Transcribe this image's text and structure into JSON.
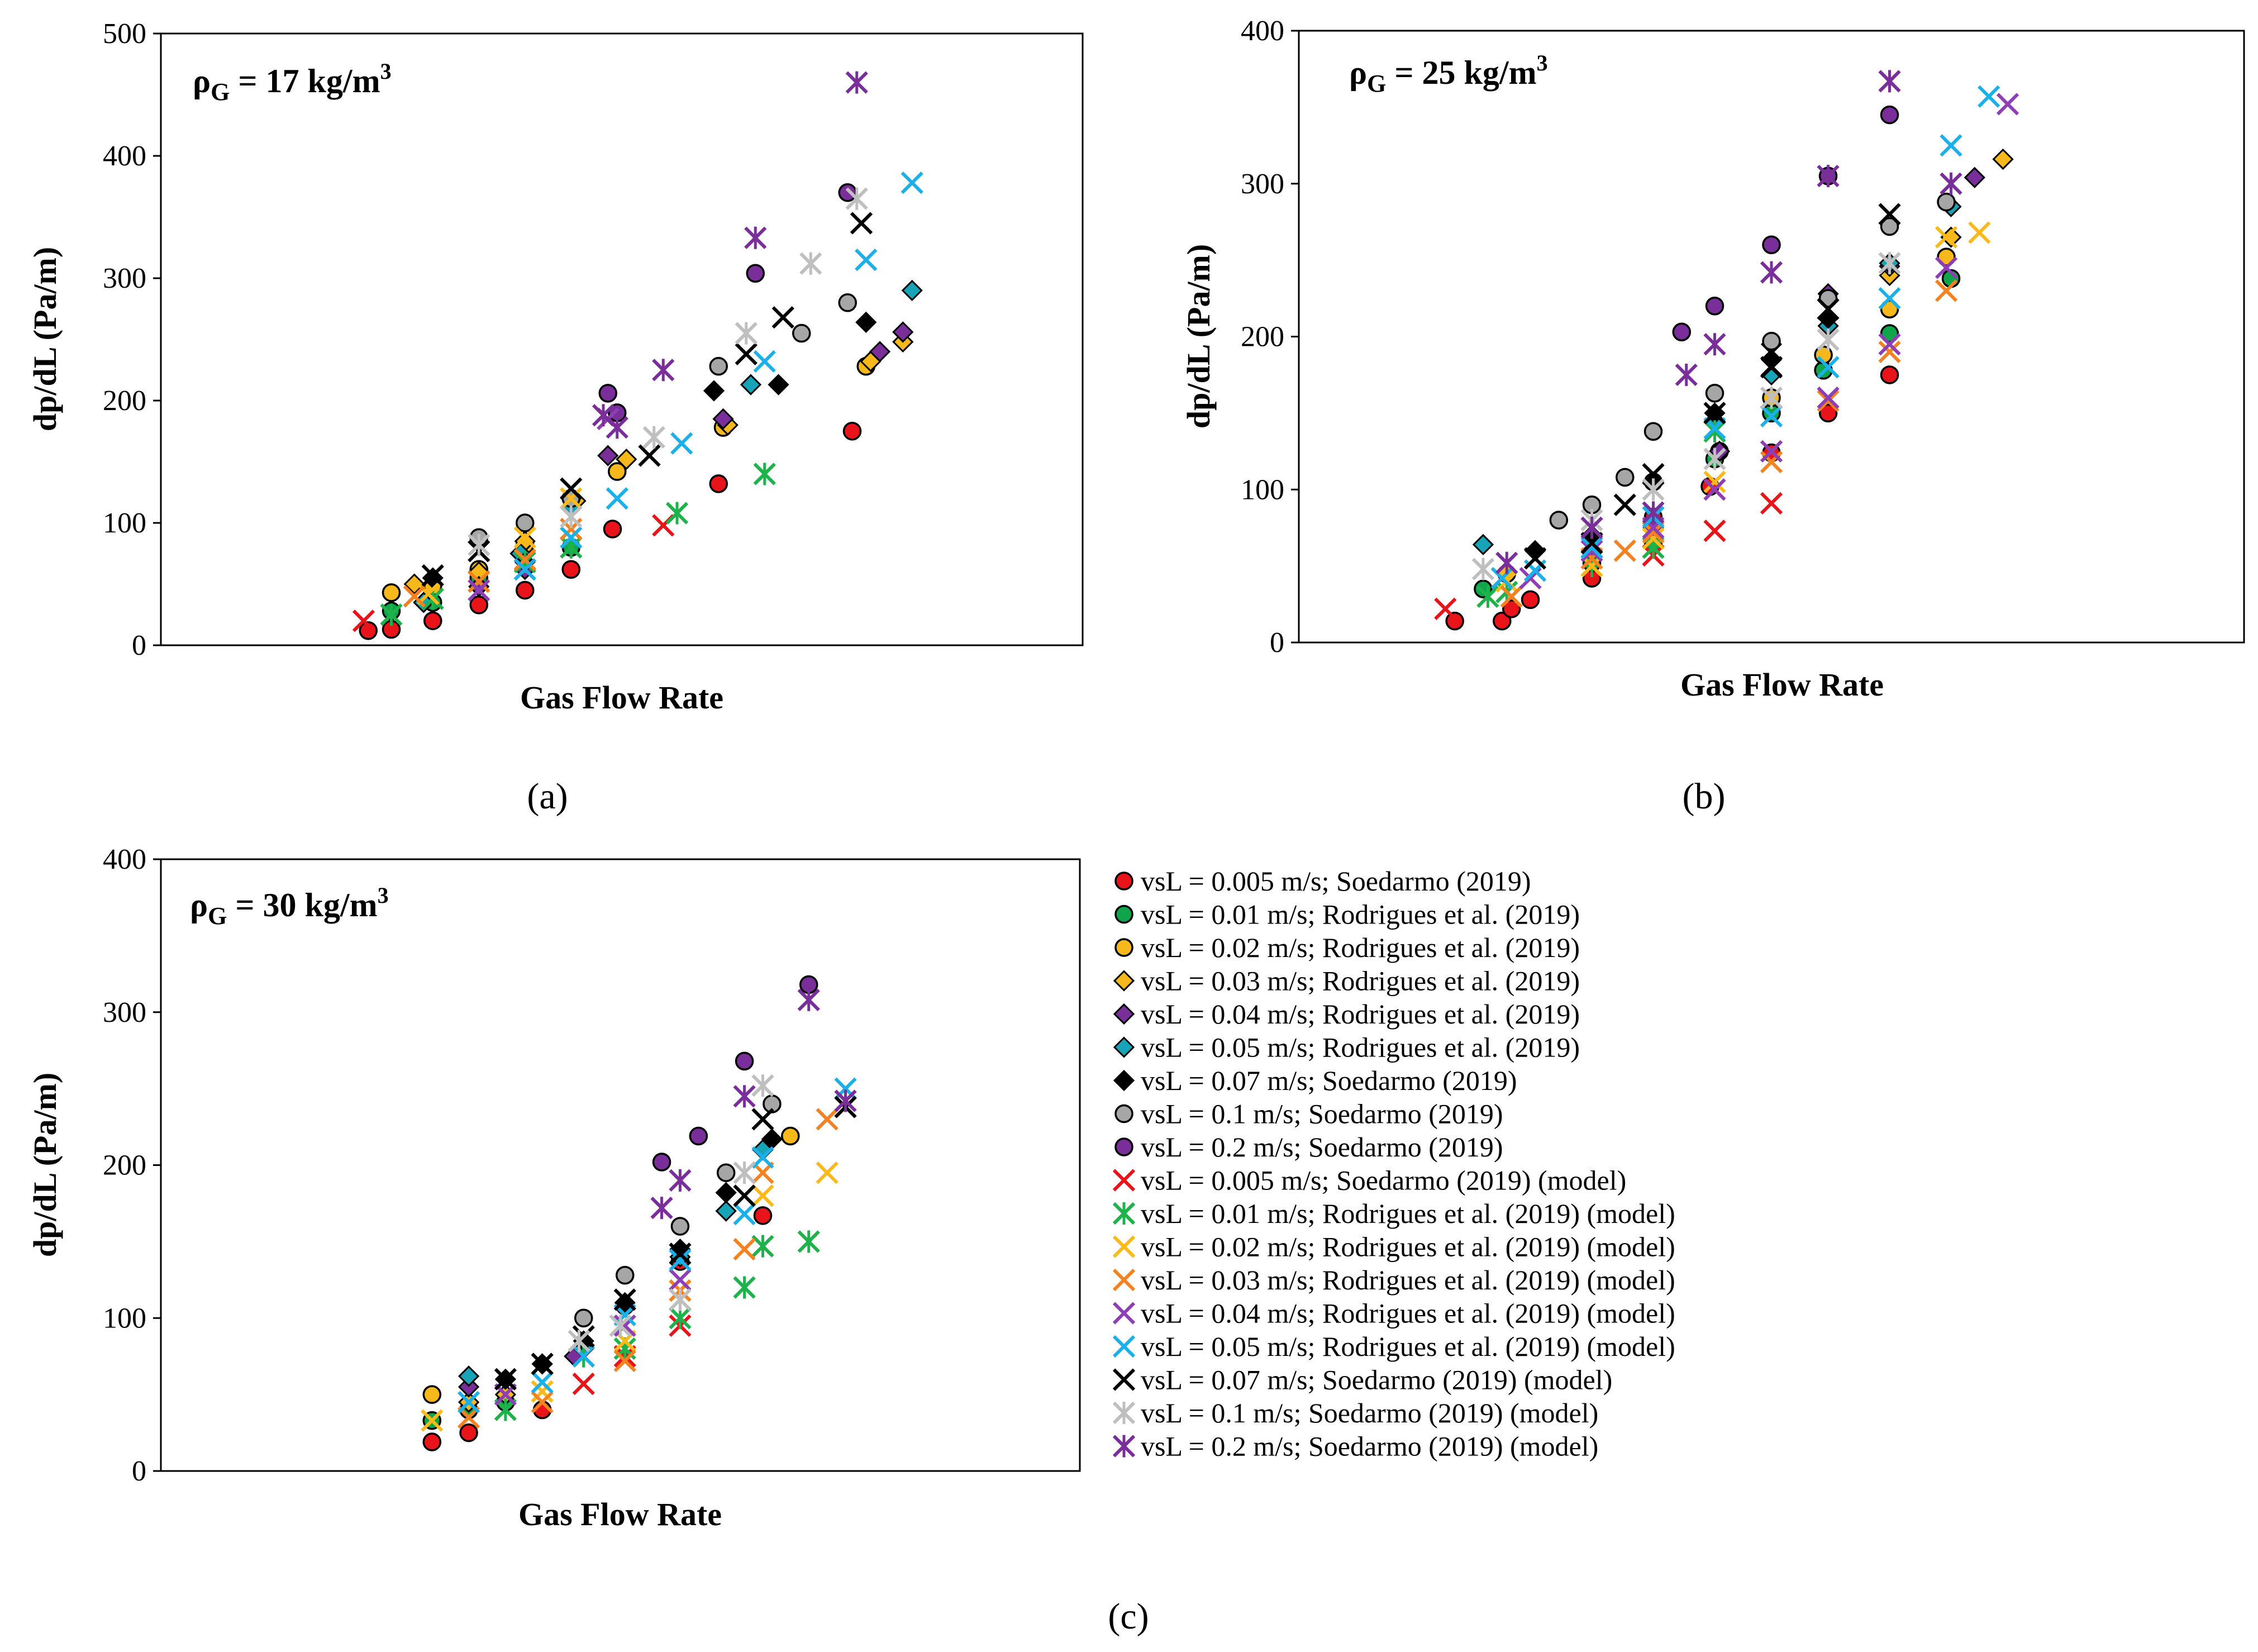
{
  "series_styles": [
    {
      "name": "vsL = 0.005 m/s; Soedarmo (2019)",
      "marker": "circle",
      "color": "#e8141a"
    },
    {
      "name": "vsL = 0.01 m/s; Rodrigues et al. (2019)",
      "marker": "circle",
      "color": "#0fa54a"
    },
    {
      "name": "vsL = 0.02 m/s; Rodrigues et al. (2019)",
      "marker": "circle",
      "color": "#f6b81a"
    },
    {
      "name": "vsL = 0.03 m/s; Rodrigues et al. (2019)",
      "marker": "diamond",
      "color": "#f6b81a"
    },
    {
      "name": "vsL = 0.04 m/s; Rodrigues et al. (2019)",
      "marker": "diamond",
      "color": "#7a2e9a"
    },
    {
      "name": "vsL = 0.05 m/s; Rodrigues et al. (2019)",
      "marker": "diamond",
      "color": "#17a3b8"
    },
    {
      "name": "vsL = 0.07 m/s; Soedarmo (2019)",
      "marker": "diamond",
      "color": "#000000"
    },
    {
      "name": "vsL = 0.1 m/s; Soedarmo (2019)",
      "marker": "circle",
      "color": "#a6a6a6"
    },
    {
      "name": "vsL = 0.2 m/s; Soedarmo (2019)",
      "marker": "circle",
      "color": "#7a2e9a"
    },
    {
      "name": "vsL = 0.005 m/s; Soedarmo (2019) (model)",
      "marker": "x",
      "color": "#e8141a"
    },
    {
      "name": "vsL = 0.01 m/s; Rodrigues et al. (2019) (model)",
      "marker": "star",
      "color": "#1db24a"
    },
    {
      "name": "vsL = 0.02 m/s; Rodrigues et al. (2019) (model)",
      "marker": "x",
      "color": "#fbb91a"
    },
    {
      "name": "vsL = 0.03 m/s; Rodrigues et al. (2019) (model)",
      "marker": "x",
      "color": "#f58220"
    },
    {
      "name": "vsL = 0.04 m/s; Rodrigues et al. (2019) (model)",
      "marker": "x",
      "color": "#8e3fb5"
    },
    {
      "name": "vsL = 0.05 m/s; Rodrigues et al. (2019) (model)",
      "marker": "x",
      "color": "#1cb0ea"
    },
    {
      "name": "vsL = 0.07 m/s; Soedarmo (2019) (model)",
      "marker": "x",
      "color": "#000000"
    },
    {
      "name": "vsL = 0.1 m/s; Soedarmo (2019) (model)",
      "marker": "star",
      "color": "#bfbfbf"
    },
    {
      "name": "vsL = 0.2 m/s; Soedarmo (2019) (model)",
      "marker": "star",
      "color": "#7a2e9a"
    }
  ],
  "chart_data": [
    {
      "type": "scatter",
      "caption": "(a)",
      "annotation": {
        "rho": "ρ",
        "sub": "G",
        "text": " = 17 kg/m",
        "sup": "3"
      },
      "xlabel": "Gas Flow  Rate",
      "ylabel": "dp/dL  (Pa/m)",
      "xlim": [
        0,
        1
      ],
      "ylim": [
        0,
        500
      ],
      "yticks": [
        0,
        100,
        200,
        300,
        400,
        500
      ],
      "series": [
        {
          "x": [
            0.225,
            0.25,
            0.295,
            0.345,
            0.395,
            0.445,
            0.49,
            0.605,
            0.75
          ],
          "y": [
            12,
            13,
            20,
            33,
            45,
            62,
            95,
            132,
            175
          ]
        },
        {
          "x": [
            0.25,
            0.295,
            0.345,
            0.445
          ],
          "y": [
            28,
            35,
            55,
            80
          ]
        },
        {
          "x": [
            0.25,
            0.295,
            0.345,
            0.395,
            0.495,
            0.61,
            0.765
          ],
          "y": [
            43,
            48,
            62,
            82,
            142,
            178,
            228
          ]
        },
        {
          "x": [
            0.275,
            0.345,
            0.395,
            0.45,
            0.505,
            0.615,
            0.77,
            0.805
          ],
          "y": [
            50,
            60,
            85,
            118,
            152,
            180,
            232,
            248
          ]
        },
        {
          "x": [
            0.345,
            0.395,
            0.485,
            0.61,
            0.78,
            0.805
          ],
          "y": [
            48,
            62,
            155,
            185,
            240,
            256
          ]
        },
        {
          "x": [
            0.285,
            0.39,
            0.445,
            0.64,
            0.815
          ],
          "y": [
            35,
            75,
            112,
            213,
            290
          ]
        },
        {
          "x": [
            0.295,
            0.395,
            0.445,
            0.6,
            0.67,
            0.765
          ],
          "y": [
            55,
            68,
            120,
            208,
            213,
            264
          ]
        },
        {
          "x": [
            0.345,
            0.395,
            0.445,
            0.605,
            0.695,
            0.745
          ],
          "y": [
            88,
            100,
            120,
            228,
            255,
            280
          ]
        },
        {
          "x": [
            0.485,
            0.495,
            0.645,
            0.745
          ],
          "y": [
            206,
            190,
            304,
            370
          ]
        },
        {
          "x": [
            0.22,
            0.545
          ],
          "y": [
            20,
            98
          ]
        },
        {
          "x": [
            0.25,
            0.295,
            0.395,
            0.445,
            0.56,
            0.655
          ],
          "y": [
            25,
            38,
            68,
            80,
            108,
            140
          ]
        },
        {
          "x": [
            0.29,
            0.395,
            0.445
          ],
          "y": [
            42,
            88,
            120
          ]
        },
        {
          "x": [
            0.275,
            0.345,
            0.395,
            0.445
          ],
          "y": [
            40,
            52,
            70,
            95
          ]
        },
        {
          "x": [
            0.345,
            0.395,
            0.485
          ],
          "y": [
            45,
            62,
            185
          ]
        },
        {
          "x": [
            0.395,
            0.445,
            0.495,
            0.565,
            0.655,
            0.765,
            0.815
          ],
          "y": [
            62,
            88,
            120,
            165,
            232,
            315,
            378
          ]
        },
        {
          "x": [
            0.295,
            0.345,
            0.445,
            0.53,
            0.635,
            0.675,
            0.76
          ],
          "y": [
            57,
            77,
            128,
            155,
            238,
            268,
            345
          ]
        },
        {
          "x": [
            0.345,
            0.445,
            0.535,
            0.635,
            0.705,
            0.755
          ],
          "y": [
            82,
            105,
            170,
            255,
            312,
            365
          ]
        },
        {
          "x": [
            0.48,
            0.495,
            0.545,
            0.645,
            0.755
          ],
          "y": [
            188,
            178,
            225,
            333,
            460
          ]
        }
      ]
    },
    {
      "type": "scatter",
      "caption": "(b)",
      "annotation": {
        "rho": "ρ",
        "sub": "G",
        "text": " = 25 kg/m",
        "sup": "3"
      },
      "xlabel": "Gas Flow  Rate",
      "ylabel": "dp/dL  (Pa/m)",
      "xlim": [
        0,
        1
      ],
      "ylim": [
        0,
        400
      ],
      "yticks": [
        0,
        100,
        200,
        300,
        400
      ],
      "series": [
        {
          "x": [
            0.165,
            0.215,
            0.225,
            0.245,
            0.31,
            0.375,
            0.435,
            0.5,
            0.56,
            0.625
          ],
          "y": [
            14,
            14,
            22,
            28,
            42,
            82,
            102,
            124,
            150,
            175
          ]
        },
        {
          "x": [
            0.195,
            0.31,
            0.375,
            0.44,
            0.5,
            0.555,
            0.625,
            0.69
          ],
          "y": [
            35,
            52,
            65,
            120,
            150,
            178,
            202,
            238
          ]
        },
        {
          "x": [
            0.22,
            0.375,
            0.445,
            0.5,
            0.555,
            0.625,
            0.685
          ],
          "y": [
            45,
            105,
            125,
            160,
            188,
            218,
            252
          ]
        },
        {
          "x": [
            0.625,
            0.69,
            0.745
          ],
          "y": [
            240,
            265,
            316
          ]
        },
        {
          "x": [
            0.31,
            0.375,
            0.445,
            0.5,
            0.56,
            0.625,
            0.715
          ],
          "y": [
            60,
            75,
            125,
            195,
            228,
            246,
            304
          ]
        },
        {
          "x": [
            0.195,
            0.25,
            0.31,
            0.44,
            0.5,
            0.56,
            0.625,
            0.69
          ],
          "y": [
            64,
            60,
            70,
            145,
            175,
            207,
            248,
            285
          ]
        },
        {
          "x": [
            0.25,
            0.31,
            0.375,
            0.44,
            0.5,
            0.56
          ],
          "y": [
            60,
            70,
            105,
            150,
            185,
            212
          ]
        },
        {
          "x": [
            0.275,
            0.31,
            0.345,
            0.375,
            0.44,
            0.5,
            0.56,
            0.625,
            0.685
          ],
          "y": [
            80,
            90,
            108,
            138,
            163,
            197,
            225,
            272,
            288
          ]
        },
        {
          "x": [
            0.405,
            0.44,
            0.5,
            0.56,
            0.625
          ],
          "y": [
            203,
            220,
            260,
            305,
            345
          ]
        },
        {
          "x": [
            0.155,
            0.375,
            0.44,
            0.5
          ],
          "y": [
            22,
            57,
            73,
            91
          ]
        },
        {
          "x": [
            0.2,
            0.22,
            0.31,
            0.375,
            0.44
          ],
          "y": [
            30,
            33,
            50,
            62,
            138
          ]
        },
        {
          "x": [
            0.22,
            0.31,
            0.375,
            0.44,
            0.5,
            0.56,
            0.685,
            0.72
          ],
          "y": [
            40,
            50,
            68,
            105,
            125,
            160,
            265,
            268
          ]
        },
        {
          "x": [
            0.225,
            0.31,
            0.345,
            0.375,
            0.44,
            0.5,
            0.56,
            0.625,
            0.685
          ],
          "y": [
            30,
            55,
            60,
            72,
            100,
            118,
            158,
            190,
            230
          ]
        },
        {
          "x": [
            0.245,
            0.31,
            0.375,
            0.44,
            0.5,
            0.56,
            0.625,
            0.685,
            0.75
          ],
          "y": [
            42,
            60,
            75,
            100,
            125,
            160,
            195,
            245,
            352
          ]
        },
        {
          "x": [
            0.215,
            0.25,
            0.31,
            0.375,
            0.44,
            0.5,
            0.56,
            0.625,
            0.69,
            0.73
          ],
          "y": [
            42,
            47,
            62,
            82,
            140,
            148,
            180,
            225,
            325,
            357
          ]
        },
        {
          "x": [
            0.25,
            0.31,
            0.345,
            0.375,
            0.44,
            0.5,
            0.56,
            0.625
          ],
          "y": [
            55,
            65,
            90,
            110,
            150,
            180,
            218,
            280
          ]
        },
        {
          "x": [
            0.195,
            0.31,
            0.375,
            0.44,
            0.5,
            0.56,
            0.625
          ],
          "y": [
            48,
            80,
            100,
            120,
            160,
            198,
            248
          ]
        },
        {
          "x": [
            0.22,
            0.31,
            0.375,
            0.41,
            0.44,
            0.5,
            0.56,
            0.625,
            0.69
          ],
          "y": [
            52,
            75,
            85,
            175,
            195,
            242,
            305,
            367,
            300
          ]
        }
      ]
    },
    {
      "type": "scatter",
      "caption": "(c)",
      "annotation": {
        "rho": "ρ",
        "sub": "G",
        "text": " = 30 kg/m",
        "sup": "3"
      },
      "xlabel": "Gas Flow  Rate",
      "ylabel": "dp/dL  (Pa/m)",
      "xlim": [
        0,
        1
      ],
      "ylim": [
        0,
        400
      ],
      "yticks": [
        0,
        100,
        200,
        300,
        400
      ],
      "series": [
        {
          "x": [
            0.295,
            0.335,
            0.415,
            0.505,
            0.565,
            0.655
          ],
          "y": [
            19,
            25,
            40,
            108,
            137,
            167
          ]
        },
        {
          "x": [
            0.295,
            0.335,
            0.375
          ],
          "y": [
            33,
            40,
            45
          ]
        },
        {
          "x": [
            0.295,
            0.685
          ],
          "y": [
            50,
            219
          ]
        },
        {
          "x": [
            0.335,
            0.375
          ],
          "y": [
            45,
            50
          ]
        },
        {
          "x": [
            0.335,
            0.45
          ],
          "y": [
            55,
            75
          ]
        },
        {
          "x": [
            0.335,
            0.415,
            0.46,
            0.565,
            0.615,
            0.655
          ],
          "y": [
            62,
            70,
            80,
            140,
            170,
            210
          ]
        },
        {
          "x": [
            0.375,
            0.415,
            0.46,
            0.505,
            0.565,
            0.615,
            0.665
          ],
          "y": [
            60,
            70,
            85,
            110,
            145,
            182,
            217
          ]
        },
        {
          "x": [
            0.46,
            0.505,
            0.565,
            0.615,
            0.665
          ],
          "y": [
            100,
            128,
            160,
            195,
            240
          ]
        },
        {
          "x": [
            0.545,
            0.585,
            0.635,
            0.705
          ],
          "y": [
            202,
            219,
            268,
            318
          ]
        },
        {
          "x": [
            0.46,
            0.505,
            0.565
          ],
          "y": [
            57,
            75,
            95
          ]
        },
        {
          "x": [
            0.375,
            0.46,
            0.505,
            0.565,
            0.635,
            0.655,
            0.705
          ],
          "y": [
            40,
            75,
            80,
            100,
            120,
            147,
            150
          ]
        },
        {
          "x": [
            0.295,
            0.415,
            0.505,
            0.565,
            0.635,
            0.655,
            0.725
          ],
          "y": [
            33,
            52,
            85,
            118,
            145,
            180,
            195
          ]
        },
        {
          "x": [
            0.335,
            0.415,
            0.505,
            0.565,
            0.635,
            0.655,
            0.725
          ],
          "y": [
            35,
            45,
            72,
            118,
            145,
            195,
            230
          ]
        },
        {
          "x": [
            0.375,
            0.46,
            0.505,
            0.565
          ],
          "y": [
            50,
            75,
            95,
            125
          ]
        },
        {
          "x": [
            0.335,
            0.415,
            0.46,
            0.505,
            0.565,
            0.635,
            0.655,
            0.745
          ],
          "y": [
            45,
            58,
            75,
            102,
            138,
            168,
            205,
            250
          ]
        },
        {
          "x": [
            0.375,
            0.415,
            0.46,
            0.505,
            0.565,
            0.635,
            0.655,
            0.745
          ],
          "y": [
            60,
            70,
            88,
            112,
            142,
            180,
            230,
            238
          ]
        },
        {
          "x": [
            0.455,
            0.5,
            0.565,
            0.635,
            0.655
          ],
          "y": [
            85,
            95,
            112,
            195,
            252
          ]
        },
        {
          "x": [
            0.545,
            0.565,
            0.635,
            0.705,
            0.745
          ],
          "y": [
            172,
            190,
            245,
            308,
            242
          ]
        }
      ]
    }
  ]
}
